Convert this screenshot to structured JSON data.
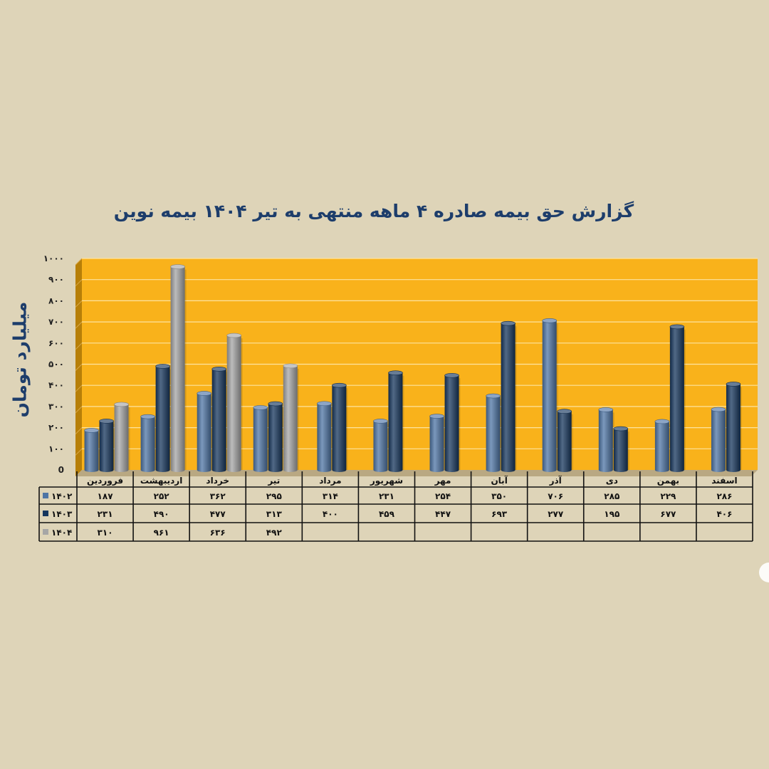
{
  "chart_data": {
    "type": "bar",
    "title": "گزارش  حق بیمه صادره ۴ ماهه منتهی به تیر ۱۴۰۴ بیمه نوین",
    "ylabel": "میلیارد تومان",
    "xlabel": "",
    "ylim": [
      0,
      1000
    ],
    "yticks": [
      "0",
      "۱۰۰",
      "۲۰۰",
      "۳۰۰",
      "۴۰۰",
      "۵۰۰",
      "۶۰۰",
      "۷۰۰",
      "۸۰۰",
      "۹۰۰",
      "۱۰۰۰"
    ],
    "grid": true,
    "categories": [
      "فروردین",
      "اردیبهشت",
      "خرداد",
      "تیر",
      "مرداد",
      "شهریور",
      "مهر",
      "آبان",
      "آذر",
      "دی",
      "بهمن",
      "اسفند"
    ],
    "series": [
      {
        "name": "۱۴۰۲",
        "color": "#4f75a5",
        "values": [
          187,
          252,
          362,
          295,
          314,
          231,
          254,
          350,
          706,
          285,
          229,
          286
        ],
        "labels": [
          "۱۸۷",
          "۲۵۲",
          "۳۶۲",
          "۲۹۵",
          "۳۱۴",
          "۲۳۱",
          "۲۵۴",
          "۳۵۰",
          "۷۰۶",
          "۲۸۵",
          "۲۲۹",
          "۲۸۶"
        ]
      },
      {
        "name": "۱۴۰۳",
        "color": "#17375e",
        "values": [
          231,
          490,
          477,
          313,
          400,
          459,
          447,
          693,
          277,
          195,
          677,
          406
        ],
        "labels": [
          "۲۳۱",
          "۴۹۰",
          "۴۷۷",
          "۳۱۳",
          "۴۰۰",
          "۴۵۹",
          "۴۴۷",
          "۶۹۳",
          "۲۷۷",
          "۱۹۵",
          "۶۷۷",
          "۴۰۶"
        ]
      },
      {
        "name": "۱۴۰۴",
        "color": "#a6a6a6",
        "values": [
          310,
          961,
          636,
          492,
          null,
          null,
          null,
          null,
          null,
          null,
          null,
          null
        ],
        "labels": [
          "۳۱۰",
          "۹۶۱",
          "۶۳۶",
          "۴۹۲",
          "",
          "",
          "",
          "",
          "",
          "",
          "",
          ""
        ]
      }
    ],
    "plot_background": "#f9b21b",
    "page_background": "#ded4b8"
  }
}
